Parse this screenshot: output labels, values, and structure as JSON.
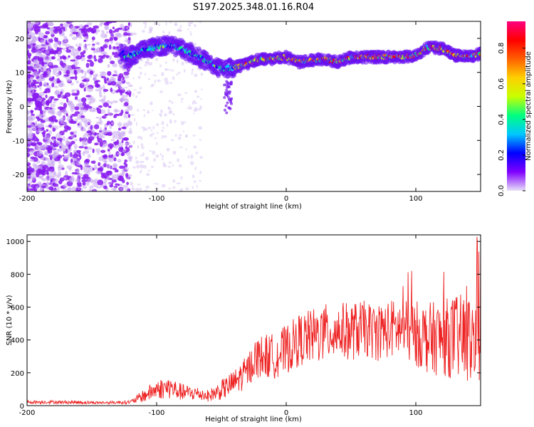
{
  "title": "S197.2025.348.01.16.R04",
  "chart_data": [
    {
      "type": "heatmap",
      "xlabel": "Height of straight line (km)",
      "ylabel": "Frequency (Hz)",
      "xlim": [
        -200,
        150
      ],
      "ylim": [
        -25,
        25
      ],
      "xticks": [
        "-200",
        "-100",
        "0",
        "100"
      ],
      "yticks": [
        "20",
        "10",
        "0",
        "-10",
        "-20"
      ],
      "colorbar": {
        "label": "Normalized spectral amplitude",
        "range": [
          0,
          0.95
        ],
        "ticks": [
          "0.0",
          "0.2",
          "0.4",
          "0.6",
          "0.8"
        ],
        "colormap": [
          "#e8e0f8",
          "#8000ff",
          "#0000ff",
          "#00c8ff",
          "#00ff80",
          "#c8ff00",
          "#ffd000",
          "#ff6000",
          "#ff0000",
          "#ff0080"
        ]
      },
      "ridge_frequency_hz": [
        {
          "x": -125,
          "y": 14.0
        },
        {
          "x": -110,
          "y": 16.5
        },
        {
          "x": -100,
          "y": 17.5
        },
        {
          "x": -90,
          "y": 18.0
        },
        {
          "x": -80,
          "y": 17.0
        },
        {
          "x": -70,
          "y": 15.0
        },
        {
          "x": -60,
          "y": 13.0
        },
        {
          "x": -50,
          "y": 11.0
        },
        {
          "x": -40,
          "y": 11.5
        },
        {
          "x": -30,
          "y": 12.5
        },
        {
          "x": -20,
          "y": 14.0
        },
        {
          "x": -10,
          "y": 14.0
        },
        {
          "x": 0,
          "y": 14.5
        },
        {
          "x": 10,
          "y": 13.0
        },
        {
          "x": 20,
          "y": 13.5
        },
        {
          "x": 30,
          "y": 14.0
        },
        {
          "x": 40,
          "y": 13.0
        },
        {
          "x": 50,
          "y": 14.5
        },
        {
          "x": 60,
          "y": 14.5
        },
        {
          "x": 70,
          "y": 14.5
        },
        {
          "x": 80,
          "y": 14.5
        },
        {
          "x": 90,
          "y": 14.5
        },
        {
          "x": 100,
          "y": 15.0
        },
        {
          "x": 110,
          "y": 17.5
        },
        {
          "x": 120,
          "y": 17.0
        },
        {
          "x": 130,
          "y": 15.0
        },
        {
          "x": 140,
          "y": 14.5
        },
        {
          "x": 150,
          "y": 15.5
        }
      ]
    },
    {
      "type": "line",
      "xlabel": "Height of straight line (km)",
      "ylabel": "SNR (10 * v/v)",
      "xlim": [
        -200,
        150
      ],
      "ylim": [
        0,
        1040
      ],
      "xticks": [
        "-200",
        "-100",
        "0",
        "100"
      ],
      "yticks": [
        "1000",
        "800",
        "600",
        "400",
        "200",
        "0"
      ],
      "series": [
        {
          "color": "#ee2222",
          "x": [
            -200,
            -180,
            -160,
            -140,
            -120,
            -110,
            -100,
            -90,
            -80,
            -70,
            -60,
            -50,
            -40,
            -30,
            -25,
            -20,
            -10,
            0,
            10,
            20,
            30,
            40,
            50,
            60,
            70,
            80,
            90,
            100,
            110,
            120,
            130,
            140,
            150
          ],
          "y": [
            22,
            22,
            20,
            18,
            22,
            60,
            100,
            110,
            80,
            75,
            60,
            95,
            140,
            210,
            280,
            300,
            300,
            340,
            400,
            420,
            440,
            460,
            450,
            470,
            440,
            470,
            460,
            440,
            410,
            410,
            420,
            400,
            400
          ],
          "spread": [
            10,
            10,
            10,
            8,
            12,
            40,
            60,
            70,
            50,
            45,
            35,
            60,
            80,
            100,
            120,
            130,
            140,
            150,
            160,
            170,
            180,
            170,
            180,
            170,
            170,
            180,
            180,
            200,
            220,
            230,
            260,
            280,
            300
          ]
        }
      ]
    }
  ]
}
